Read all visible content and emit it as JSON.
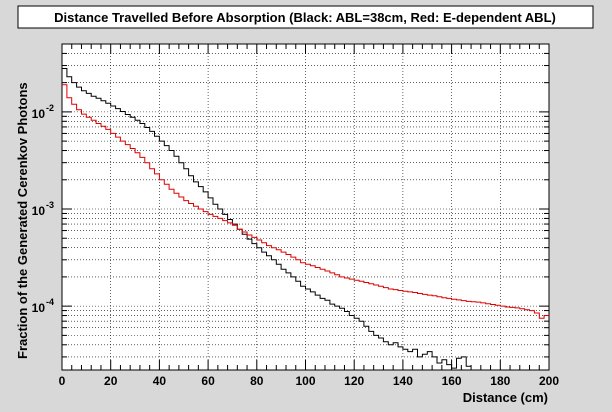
{
  "chart_data": {
    "type": "line",
    "title": "Distance Travelled Before Absorption (Black: ABL=38cm, Red: E-dependent ABL)",
    "xlabel": "Distance (cm)",
    "ylabel": "Fraction of the Generated Cerenkov Photons",
    "xlim": [
      0,
      200
    ],
    "ylim": [
      2.2e-05,
      0.05
    ],
    "y_scale": "log",
    "grid": true,
    "x_ticks": [
      0,
      20,
      40,
      60,
      80,
      100,
      120,
      140,
      160,
      180,
      200
    ],
    "y_ticks": [
      {
        "value": 0.01,
        "base": "10",
        "exp": "-2"
      },
      {
        "value": 0.001,
        "base": "10",
        "exp": "-3"
      },
      {
        "value": 0.0001,
        "base": "10",
        "exp": "-4"
      }
    ],
    "series": [
      {
        "color": "#000000",
        "style": "step",
        "x": [
          0,
          2,
          4,
          6,
          8,
          10,
          12,
          14,
          16,
          18,
          20,
          22,
          24,
          26,
          28,
          30,
          32,
          34,
          36,
          38,
          40,
          42,
          44,
          46,
          48,
          50,
          52,
          54,
          56,
          58,
          60,
          62,
          64,
          66,
          68,
          70,
          72,
          74,
          76,
          78,
          80,
          82,
          84,
          86,
          88,
          90,
          92,
          94,
          96,
          98,
          100,
          102,
          104,
          106,
          108,
          110,
          112,
          114,
          116,
          118,
          120,
          122,
          124,
          126,
          128,
          130,
          132,
          134,
          136,
          138,
          140,
          142,
          144,
          146,
          148,
          150,
          152,
          154,
          156,
          158,
          160,
          162,
          164,
          166
        ],
        "values": [
          0.028,
          0.023,
          0.02,
          0.018,
          0.0165,
          0.0155,
          0.0145,
          0.0138,
          0.013,
          0.0123,
          0.0115,
          0.0108,
          0.0101,
          0.0094,
          0.0088,
          0.0082,
          0.0076,
          0.0069,
          0.0063,
          0.0056,
          0.005,
          0.0045,
          0.004,
          0.0035,
          0.003,
          0.0026,
          0.0022,
          0.0019,
          0.0017,
          0.0015,
          0.0013,
          0.00112,
          0.001,
          0.00088,
          0.00078,
          0.0007,
          0.00062,
          0.00055,
          0.00049,
          0.00044,
          0.0004,
          0.00036,
          0.00033,
          0.0003,
          0.00027,
          0.00024,
          0.00022,
          0.0002,
          0.00018,
          0.00016,
          0.00015,
          0.00014,
          0.00013,
          0.00012,
          0.000115,
          0.000105,
          0.0001,
          9.5e-05,
          8.8e-05,
          8e-05,
          7.5e-05,
          7e-05,
          6.2e-05,
          5.5e-05,
          5e-05,
          4.7e-05,
          4.3e-05,
          4e-05,
          4.2e-05,
          3.8e-05,
          3.6e-05,
          3.4e-05,
          3.6e-05,
          3e-05,
          3.2e-05,
          3.4e-05,
          3e-05,
          2.6e-05,
          2.8e-05,
          2.5e-05,
          2.3e-05,
          2.9e-05,
          3e-05,
          2.4e-05
        ]
      },
      {
        "color": "#dd0000",
        "style": "step",
        "x": [
          0,
          2,
          4,
          6,
          8,
          10,
          12,
          14,
          16,
          18,
          20,
          22,
          24,
          26,
          28,
          30,
          32,
          34,
          36,
          38,
          40,
          42,
          44,
          46,
          48,
          50,
          52,
          54,
          56,
          58,
          60,
          62,
          64,
          66,
          68,
          70,
          72,
          74,
          76,
          78,
          80,
          82,
          84,
          86,
          88,
          90,
          92,
          94,
          96,
          98,
          100,
          102,
          104,
          106,
          108,
          110,
          112,
          114,
          116,
          118,
          120,
          122,
          124,
          126,
          128,
          130,
          132,
          134,
          136,
          138,
          140,
          142,
          144,
          146,
          148,
          150,
          152,
          154,
          156,
          158,
          160,
          162,
          164,
          166,
          168,
          170,
          172,
          174,
          176,
          178,
          180,
          182,
          184,
          186,
          188,
          190,
          192,
          194,
          196,
          198
        ],
        "values": [
          0.019,
          0.014,
          0.012,
          0.0105,
          0.0095,
          0.0088,
          0.0082,
          0.0076,
          0.0071,
          0.0066,
          0.006,
          0.0055,
          0.005,
          0.0046,
          0.0042,
          0.0038,
          0.0034,
          0.003,
          0.0026,
          0.0023,
          0.002,
          0.0018,
          0.0016,
          0.00145,
          0.00133,
          0.00122,
          0.00114,
          0.00107,
          0.001,
          0.00094,
          0.00088,
          0.00084,
          0.0008,
          0.00076,
          0.00072,
          0.00068,
          0.00062,
          0.00058,
          0.00054,
          0.00051,
          0.00048,
          0.00045,
          0.00042,
          0.0004,
          0.00038,
          0.00036,
          0.00034,
          0.00032,
          0.0003,
          0.00028,
          0.00027,
          0.00026,
          0.00025,
          0.00024,
          0.00023,
          0.00022,
          0.00021,
          0.0002,
          0.000195,
          0.00019,
          0.000185,
          0.00018,
          0.000175,
          0.00017,
          0.000165,
          0.00016,
          0.000155,
          0.00015,
          0.000148,
          0.000145,
          0.000142,
          0.00014,
          0.000138,
          0.000135,
          0.000132,
          0.00013,
          0.000128,
          0.000125,
          0.000122,
          0.00012,
          0.000118,
          0.000116,
          0.000114,
          0.000112,
          0.000111,
          0.00011,
          0.000108,
          0.000106,
          0.000104,
          0.000102,
          0.0001,
          9.8e-05,
          9.7e-05,
          9.6e-05,
          9.4e-05,
          9.2e-05,
          9e-05,
          8.5e-05,
          7.5e-05,
          8e-05
        ]
      }
    ]
  }
}
